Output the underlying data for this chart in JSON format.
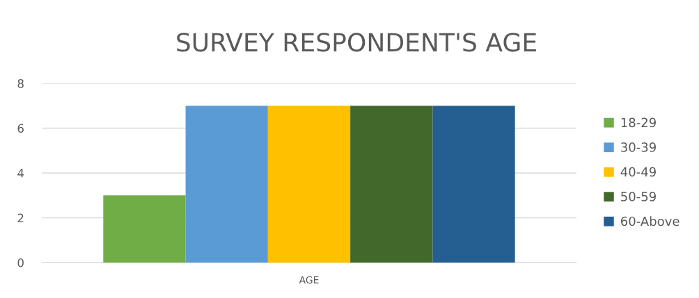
{
  "chart_data": {
    "type": "bar",
    "title": "SURVEY RESPONDENT'S AGE",
    "categories": [
      "AGE"
    ],
    "series": [
      {
        "name": "18-29",
        "color": "#70ad47",
        "values": [
          3
        ]
      },
      {
        "name": "30-39",
        "color": "#5b9bd5",
        "values": [
          7
        ]
      },
      {
        "name": "40-49",
        "color": "#ffc000",
        "values": [
          7
        ]
      },
      {
        "name": "50-59",
        "color": "#43682b",
        "values": [
          7
        ]
      },
      {
        "name": "60-Above",
        "color": "#255e91",
        "values": [
          7
        ]
      }
    ],
    "ylim": [
      0,
      8
    ],
    "yticks": [
      0,
      2,
      4,
      6,
      8
    ],
    "grid": "y",
    "legend": "right"
  }
}
